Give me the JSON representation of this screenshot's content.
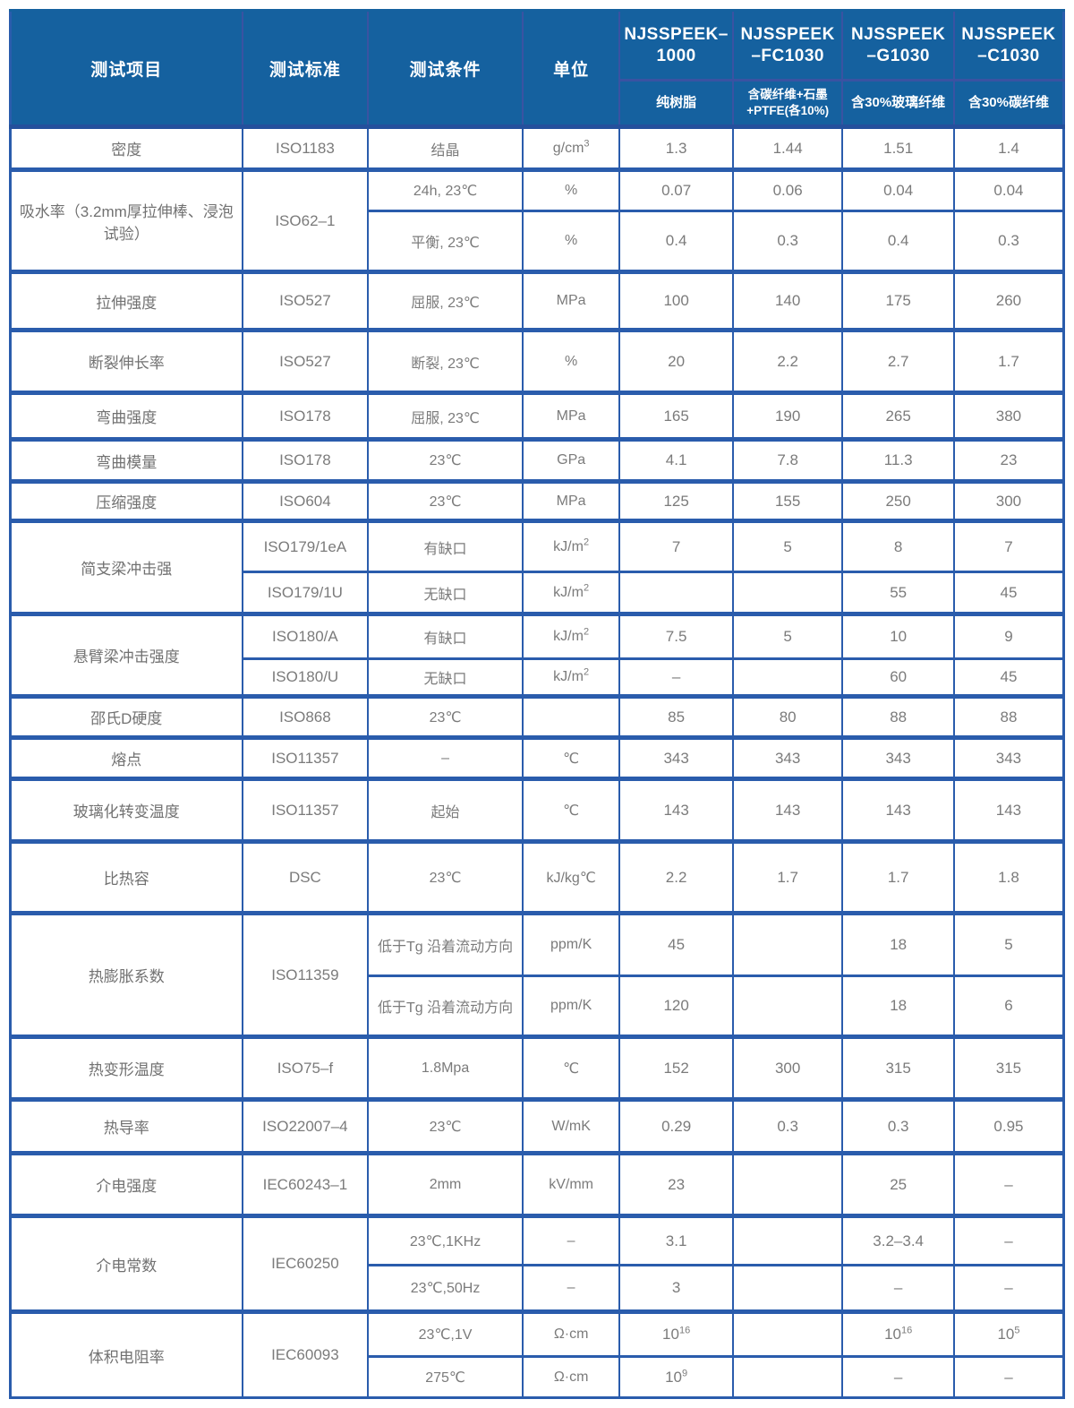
{
  "header": {
    "columns": [
      "测试项目",
      "测试标准",
      "测试条件",
      "单位"
    ],
    "products": [
      {
        "name": "NJSSPEEK–1000",
        "desc": "纯树脂"
      },
      {
        "name": "NJSSPEEK–FC1030",
        "desc": "含碳纤维+石墨+PTFE(各10%)"
      },
      {
        "name": "NJSSPEEK–G1030",
        "desc": "含30%玻璃纤维"
      },
      {
        "name": "NJSSPEEK–C1030",
        "desc": "含30%碳纤维"
      }
    ]
  },
  "colors": {
    "header_bg": "#15619f",
    "header_border": "#3a53a2",
    "grid_border": "#2a5cac",
    "body_text": "#7b7b7b"
  },
  "groups": [
    {
      "item": "密度",
      "standard": "ISO1183",
      "rows": [
        {
          "condition": "结晶",
          "unit": "g/cm^3",
          "values": [
            "1.3",
            "1.44",
            "1.51",
            "1.4"
          ]
        }
      ]
    },
    {
      "item": "吸水率（3.2mm厚拉伸棒、浸泡试验）",
      "standard": "ISO62–1",
      "rows": [
        {
          "condition": "24h, 23℃",
          "unit": "%",
          "values": [
            "0.07",
            "0.06",
            "0.04",
            "0.04"
          ]
        },
        {
          "condition": "平衡, 23℃",
          "unit": "%",
          "values": [
            "0.4",
            "0.3",
            "0.4",
            "0.3"
          ]
        }
      ]
    },
    {
      "item": "拉伸强度",
      "standard": "ISO527",
      "rows": [
        {
          "condition": "屈服, 23℃",
          "unit": "MPa",
          "values": [
            "100",
            "140",
            "175",
            "260"
          ]
        }
      ]
    },
    {
      "item": "断裂伸长率",
      "standard": "ISO527",
      "rows": [
        {
          "condition": "断裂, 23℃",
          "unit": "%",
          "values": [
            "20",
            "2.2",
            "2.7",
            "1.7"
          ]
        }
      ]
    },
    {
      "item": "弯曲强度",
      "standard": "ISO178",
      "rows": [
        {
          "condition": "屈服, 23℃",
          "unit": "MPa",
          "values": [
            "165",
            "190",
            "265",
            "380"
          ]
        }
      ]
    },
    {
      "item": "弯曲模量",
      "standard": "ISO178",
      "rows": [
        {
          "condition": "23℃",
          "unit": "GPa",
          "values": [
            "4.1",
            "7.8",
            "11.3",
            "23"
          ]
        }
      ]
    },
    {
      "item": "压缩强度",
      "standard": "ISO604",
      "rows": [
        {
          "condition": "23℃",
          "unit": "MPa",
          "values": [
            "125",
            "155",
            "250",
            "300"
          ]
        }
      ]
    },
    {
      "item": "简支梁冲击强",
      "rows": [
        {
          "standard": "ISO179/1eA",
          "condition": "有缺口",
          "unit": "kJ/m^2",
          "values": [
            "7",
            "5",
            "8",
            "7"
          ]
        },
        {
          "standard": "ISO179/1U",
          "condition": "无缺口",
          "unit": "kJ/m^2",
          "values": [
            "",
            "",
            "55",
            "45"
          ]
        }
      ]
    },
    {
      "item": "悬臂梁冲击强度",
      "rows": [
        {
          "standard": "ISO180/A",
          "condition": "有缺口",
          "unit": "kJ/m^2",
          "values": [
            "7.5",
            "5",
            "10",
            "9"
          ]
        },
        {
          "standard": "ISO180/U",
          "condition": "无缺口",
          "unit": "kJ/m^2",
          "values": [
            "–",
            "",
            "60",
            "45"
          ]
        }
      ]
    },
    {
      "item": "邵氏D硬度",
      "standard": "ISO868",
      "rows": [
        {
          "condition": "23℃",
          "unit": "",
          "values": [
            "85",
            "80",
            "88",
            "88"
          ]
        }
      ]
    },
    {
      "item": "熔点",
      "standard": "ISO11357",
      "rows": [
        {
          "condition": "–",
          "unit": "℃",
          "values": [
            "343",
            "343",
            "343",
            "343"
          ]
        }
      ]
    },
    {
      "item": "玻璃化转变温度",
      "standard": "ISO11357",
      "rows": [
        {
          "condition": "起始",
          "unit": "℃",
          "values": [
            "143",
            "143",
            "143",
            "143"
          ]
        }
      ]
    },
    {
      "item": "比热容",
      "standard": "DSC",
      "rows": [
        {
          "condition": "23℃",
          "unit": "kJ/kg℃",
          "values": [
            "2.2",
            "1.7",
            "1.7",
            "1.8"
          ]
        }
      ]
    },
    {
      "item": "热膨胀系数",
      "standard": "ISO11359",
      "rows": [
        {
          "condition": "低于Tg 沿着流动方向",
          "unit": "ppm/K",
          "values": [
            "45",
            "",
            "18",
            "5"
          ]
        },
        {
          "condition": "低于Tg 沿着流动方向",
          "unit": "ppm/K",
          "values": [
            "120",
            "",
            "18",
            "6"
          ]
        }
      ]
    },
    {
      "item": "热变形温度",
      "standard": "ISO75–f",
      "rows": [
        {
          "condition": "1.8Mpa",
          "unit": "℃",
          "values": [
            "152",
            "300",
            "315",
            "315"
          ]
        }
      ]
    },
    {
      "item": "热导率",
      "standard": "ISO22007–4",
      "rows": [
        {
          "condition": "23℃",
          "unit": "W/mK",
          "values": [
            "0.29",
            "0.3",
            "0.3",
            "0.95"
          ]
        }
      ]
    },
    {
      "item": "介电强度",
      "standard": "IEC60243–1",
      "rows": [
        {
          "condition": "2mm",
          "unit": "kV/mm",
          "values": [
            "23",
            "",
            "25",
            "–"
          ]
        }
      ]
    },
    {
      "item": "介电常数",
      "standard": "IEC60250",
      "rows": [
        {
          "condition": "23℃,1KHz",
          "unit": "–",
          "values": [
            "3.1",
            "",
            "3.2–3.4",
            "–"
          ]
        },
        {
          "condition": "23℃,50Hz",
          "unit": "–",
          "values": [
            "3",
            "",
            "–",
            "–"
          ]
        }
      ]
    },
    {
      "item": "体积电阻率",
      "standard": "IEC60093",
      "rows": [
        {
          "condition": "23℃,1V",
          "unit": "Ω·cm",
          "values": [
            "10^16",
            "",
            "10^16",
            "10^5"
          ]
        },
        {
          "condition": "275℃",
          "unit": "Ω·cm",
          "values": [
            "10^9",
            "",
            "–",
            "–"
          ]
        }
      ]
    }
  ]
}
